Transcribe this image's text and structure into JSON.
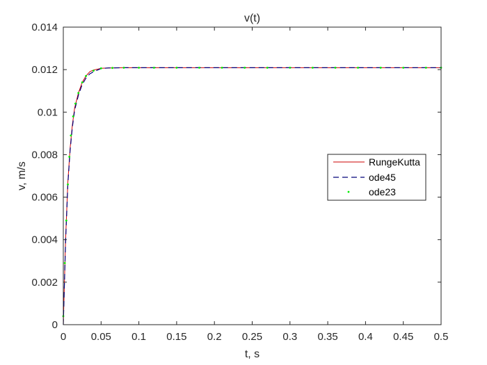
{
  "chart_data": {
    "type": "line",
    "title": "v(t)",
    "xlabel": "t, s",
    "ylabel": "v, m/s",
    "xlim": [
      0,
      0.5
    ],
    "ylim": [
      0,
      0.014
    ],
    "xticks": [
      0,
      0.05,
      0.1,
      0.15,
      0.2,
      0.25,
      0.3,
      0.35,
      0.4,
      0.45,
      0.5
    ],
    "xtick_labels": [
      "0",
      "0.05",
      "0.1",
      "0.15",
      "0.2",
      "0.25",
      "0.3",
      "0.35",
      "0.4",
      "0.45",
      "0.5"
    ],
    "yticks": [
      0,
      0.002,
      0.004,
      0.006,
      0.008,
      0.01,
      0.012,
      0.014
    ],
    "ytick_labels": [
      "0",
      "0.002",
      "0.004",
      "0.006",
      "0.008",
      "0.01",
      "0.012",
      "0.014"
    ],
    "grid": false,
    "legend_position": "east",
    "series": [
      {
        "name": "RungeKutta",
        "style": "solid",
        "color": "#cc0000",
        "x": [
          0,
          0.003,
          0.006,
          0.009,
          0.012,
          0.015,
          0.02,
          0.025,
          0.03,
          0.035,
          0.04,
          0.05,
          0.06,
          0.08,
          0.1,
          0.15,
          0.2,
          0.25,
          0.3,
          0.35,
          0.4,
          0.45,
          0.5
        ],
        "y": [
          0,
          0.004,
          0.0067,
          0.0083,
          0.0094,
          0.0102,
          0.0109,
          0.0114,
          0.0117,
          0.0119,
          0.01198,
          0.01206,
          0.01208,
          0.01209,
          0.01209,
          0.01209,
          0.01209,
          0.01209,
          0.01209,
          0.01209,
          0.01209,
          0.01209,
          0.01209
        ]
      },
      {
        "name": "ode45",
        "style": "dashed",
        "color": "#00007a",
        "x": [
          0,
          0.003,
          0.006,
          0.009,
          0.012,
          0.015,
          0.02,
          0.025,
          0.03,
          0.035,
          0.04,
          0.05,
          0.06,
          0.08,
          0.1,
          0.15,
          0.2,
          0.25,
          0.3,
          0.35,
          0.4,
          0.45,
          0.5
        ],
        "y": [
          0,
          0.0039,
          0.0066,
          0.0082,
          0.0093,
          0.0101,
          0.0108,
          0.0113,
          0.0116,
          0.0118,
          0.0119,
          0.01205,
          0.01208,
          0.01209,
          0.01209,
          0.01209,
          0.01209,
          0.01209,
          0.01209,
          0.01209,
          0.01209,
          0.01209,
          0.01209
        ]
      },
      {
        "name": "ode23",
        "style": "markers",
        "color": "#00ee00",
        "x": [
          0,
          0.002,
          0.004,
          0.006,
          0.008,
          0.01,
          0.013,
          0.016,
          0.02,
          0.025,
          0.03,
          0.04,
          0.05,
          0.065,
          0.08,
          0.1,
          0.12,
          0.15,
          0.18,
          0.21,
          0.24,
          0.27,
          0.3,
          0.33,
          0.36,
          0.39,
          0.42,
          0.45,
          0.48,
          0.5
        ],
        "y": [
          0.0004,
          0.0029,
          0.0049,
          0.0066,
          0.0079,
          0.0089,
          0.0098,
          0.0104,
          0.0109,
          0.0114,
          0.0117,
          0.01195,
          0.01206,
          0.01208,
          0.01209,
          0.01209,
          0.01209,
          0.01209,
          0.01209,
          0.01209,
          0.01209,
          0.01209,
          0.01209,
          0.01209,
          0.01209,
          0.01209,
          0.01209,
          0.01209,
          0.01209,
          0.01209
        ]
      }
    ]
  }
}
